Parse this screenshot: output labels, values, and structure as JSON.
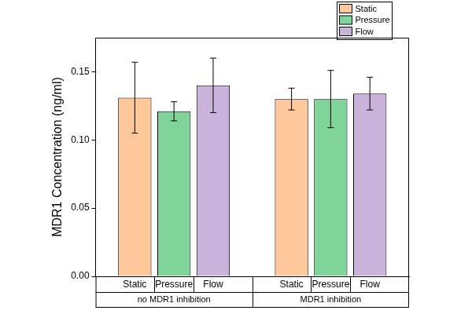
{
  "chart_data": {
    "type": "bar",
    "y_label": "MDR1 Concentration (ng/ml)",
    "categories": [
      "no MDR1 inhibition",
      "MDR1 inhibition"
    ],
    "series": [
      {
        "name": "Static",
        "color": "#fec89a",
        "values": [
          0.131,
          0.13
        ],
        "error": [
          0.026,
          0.008
        ]
      },
      {
        "name": "Pressure",
        "color": "#7fd49a",
        "values": [
          0.121,
          0.13
        ],
        "error": [
          0.007,
          0.021
        ]
      },
      {
        "name": "Flow",
        "color": "#c9b3da",
        "values": [
          0.14,
          0.134
        ],
        "error": [
          0.02,
          0.012
        ]
      }
    ],
    "ylim": [
      0,
      0.175
    ],
    "yticks": [
      {
        "value": 0,
        "label": "0.00"
      },
      {
        "value": 0.05,
        "label": "0.05"
      },
      {
        "value": 0.1,
        "label": "0.10"
      },
      {
        "value": 0.15,
        "label": "0.15"
      }
    ],
    "grid": false,
    "legend": "upper right"
  }
}
